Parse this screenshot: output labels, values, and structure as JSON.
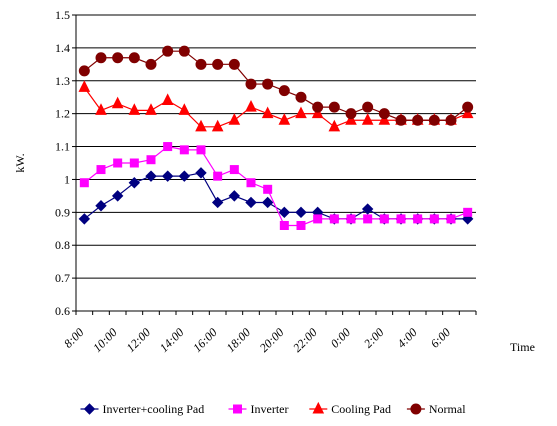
{
  "chart_data": {
    "type": "line",
    "categories": [
      "8:00",
      null,
      "10:00",
      null,
      "12:00",
      null,
      "14:00",
      null,
      "16:00",
      null,
      "18:00",
      null,
      "20:00",
      null,
      "22:00",
      null,
      "0:00",
      null,
      "2:00",
      null,
      "4:00",
      null,
      "6:00",
      null
    ],
    "series": [
      {
        "name": "Inverter+cooling Pad",
        "color": "#000080",
        "marker": "diamond",
        "values": [
          0.88,
          0.92,
          0.95,
          0.99,
          1.01,
          1.01,
          1.01,
          1.02,
          0.93,
          0.95,
          0.93,
          0.93,
          0.9,
          0.9,
          0.9,
          0.88,
          0.88,
          0.91,
          0.88,
          0.88,
          0.88,
          0.88,
          0.88,
          0.88
        ]
      },
      {
        "name": "Inverter",
        "color": "#ff00ff",
        "marker": "square",
        "values": [
          0.99,
          1.03,
          1.05,
          1.05,
          1.06,
          1.1,
          1.09,
          1.09,
          1.01,
          1.03,
          0.99,
          0.97,
          0.86,
          0.86,
          0.88,
          0.88,
          0.88,
          0.88,
          0.88,
          0.88,
          0.88,
          0.88,
          0.88,
          0.9
        ]
      },
      {
        "name": "Cooling Pad",
        "color": "#ff0000",
        "marker": "triangle",
        "values": [
          1.28,
          1.21,
          1.23,
          1.21,
          1.21,
          1.24,
          1.21,
          1.16,
          1.16,
          1.18,
          1.22,
          1.2,
          1.18,
          1.2,
          1.2,
          1.16,
          1.18,
          1.18,
          1.18,
          1.18,
          1.18,
          1.18,
          1.18,
          1.2
        ]
      },
      {
        "name": "Normal",
        "color": "#800000",
        "marker": "circle",
        "values": [
          1.33,
          1.37,
          1.37,
          1.37,
          1.35,
          1.39,
          1.39,
          1.35,
          1.35,
          1.35,
          1.29,
          1.29,
          1.27,
          1.25,
          1.22,
          1.22,
          1.2,
          1.22,
          1.2,
          1.18,
          1.18,
          1.18,
          1.18,
          1.22
        ]
      }
    ],
    "ylim": [
      0.6,
      1.5
    ],
    "yticks": [
      0.6,
      0.7,
      0.8,
      0.9,
      1,
      1.1,
      1.2,
      1.3,
      1.4,
      1.5
    ],
    "y_label": "kW.",
    "x_label": "Time",
    "grid": true,
    "legend": "bottom"
  }
}
